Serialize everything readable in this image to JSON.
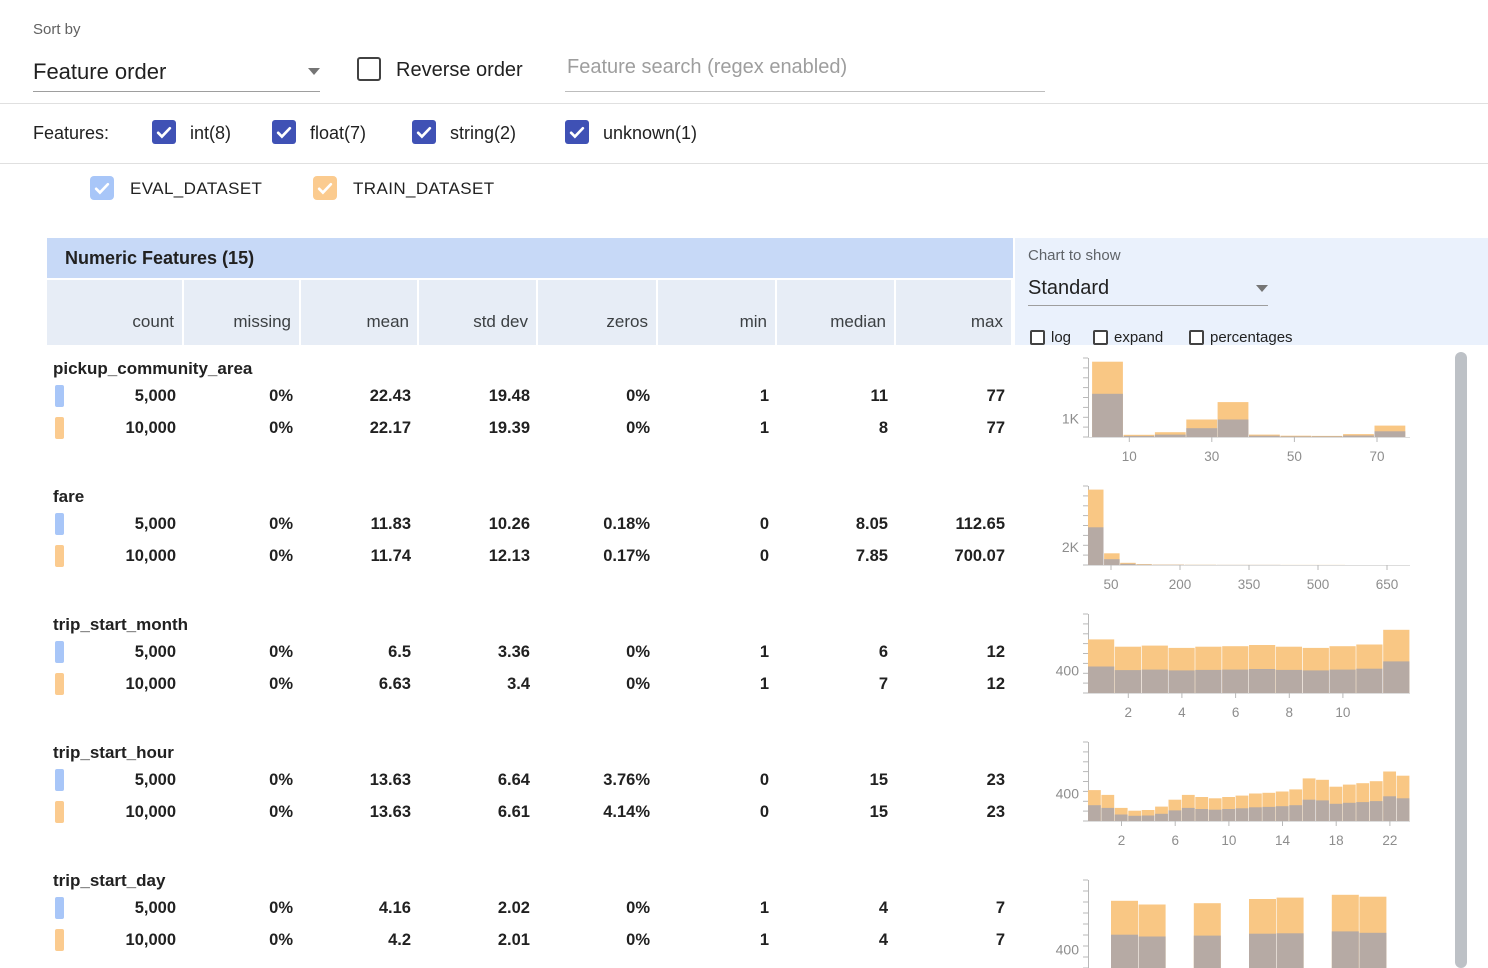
{
  "colors": {
    "checkbox_indigo": "#3f51b5",
    "eval_swatch": "#a8c6f8",
    "train_swatch": "#fbcb8f",
    "train_bar": "#f9c784",
    "overlap_bar": "#b2a9a5",
    "title_band": "#c7d9f7",
    "column_band": "#e7edf6",
    "chart_panel": "#eaf1fc"
  },
  "toolbar": {
    "sort_by_label": "Sort by",
    "sort_by_value": "Feature order",
    "reverse_order_label": "Reverse order",
    "search_placeholder": "Feature search (regex enabled)"
  },
  "filters": {
    "label": "Features:",
    "types": [
      {
        "label": "int(8)",
        "checked": true
      },
      {
        "label": "float(7)",
        "checked": true
      },
      {
        "label": "string(2)",
        "checked": true
      },
      {
        "label": "unknown(1)",
        "checked": true
      }
    ]
  },
  "datasets": [
    {
      "name": "EVAL_DATASET",
      "color": "#a8c6f8"
    },
    {
      "name": "TRAIN_DATASET",
      "color": "#fbcb8f"
    }
  ],
  "table": {
    "title": "Numeric Features (15)",
    "columns": [
      "count",
      "missing",
      "mean",
      "std dev",
      "zeros",
      "min",
      "median",
      "max"
    ],
    "chart_controls": {
      "label": "Chart to show",
      "selected": "Standard",
      "checkboxes": [
        {
          "label": "log",
          "checked": false
        },
        {
          "label": "expand",
          "checked": false
        },
        {
          "label": "percentages",
          "checked": false
        }
      ]
    },
    "features": [
      {
        "name": "pickup_community_area",
        "rows": [
          {
            "dataset": "eval",
            "values": [
              "5,000",
              "0%",
              "22.43",
              "19.48",
              "0%",
              "1",
              "11",
              "77"
            ]
          },
          {
            "dataset": "train",
            "values": [
              "10,000",
              "0%",
              "22.17",
              "19.39",
              "0%",
              "1",
              "8",
              "77"
            ]
          }
        ]
      },
      {
        "name": "fare",
        "rows": [
          {
            "dataset": "eval",
            "values": [
              "5,000",
              "0%",
              "11.83",
              "10.26",
              "0.18%",
              "0",
              "8.05",
              "112.65"
            ]
          },
          {
            "dataset": "train",
            "values": [
              "10,000",
              "0%",
              "11.74",
              "12.13",
              "0.17%",
              "0",
              "7.85",
              "700.07"
            ]
          }
        ]
      },
      {
        "name": "trip_start_month",
        "rows": [
          {
            "dataset": "eval",
            "values": [
              "5,000",
              "0%",
              "6.5",
              "3.36",
              "0%",
              "1",
              "6",
              "12"
            ]
          },
          {
            "dataset": "train",
            "values": [
              "10,000",
              "0%",
              "6.63",
              "3.4",
              "0%",
              "1",
              "7",
              "12"
            ]
          }
        ]
      },
      {
        "name": "trip_start_hour",
        "rows": [
          {
            "dataset": "eval",
            "values": [
              "5,000",
              "0%",
              "13.63",
              "6.64",
              "3.76%",
              "0",
              "15",
              "23"
            ]
          },
          {
            "dataset": "train",
            "values": [
              "10,000",
              "0%",
              "13.63",
              "6.61",
              "4.14%",
              "0",
              "15",
              "23"
            ]
          }
        ]
      },
      {
        "name": "trip_start_day",
        "rows": [
          {
            "dataset": "eval",
            "values": [
              "5,000",
              "0%",
              "4.16",
              "2.02",
              "0%",
              "1",
              "4",
              "7"
            ]
          },
          {
            "dataset": "train",
            "values": [
              "10,000",
              "0%",
              "4.2",
              "2.01",
              "0%",
              "1",
              "4",
              "7"
            ]
          }
        ]
      }
    ]
  },
  "chart_data": [
    {
      "type": "histogram",
      "feature": "pickup_community_area",
      "xrange": [
        0,
        78
      ],
      "xticks": [
        10,
        30,
        50,
        70
      ],
      "ymax": 4300,
      "ytick": {
        "value": 1000,
        "label": "1K"
      },
      "series": [
        {
          "name": "TRAIN_DATASET",
          "bins": [
            [
              1,
              8.6,
              4100
            ],
            [
              8.6,
              16.2,
              120
            ],
            [
              16.2,
              23.8,
              260
            ],
            [
              23.8,
              31.4,
              950
            ],
            [
              31.4,
              39,
              1900
            ],
            [
              39,
              46.6,
              130
            ],
            [
              46.6,
              54.2,
              70
            ],
            [
              54.2,
              61.8,
              60
            ],
            [
              61.8,
              69.4,
              160
            ],
            [
              69.4,
              77,
              620
            ]
          ]
        },
        {
          "name": "EVAL_DATASET",
          "bins": [
            [
              1,
              8.6,
              2350
            ],
            [
              8.6,
              16.2,
              60
            ],
            [
              16.2,
              23.8,
              130
            ],
            [
              23.8,
              31.4,
              480
            ],
            [
              31.4,
              39,
              950
            ],
            [
              39,
              46.6,
              70
            ],
            [
              46.6,
              54.2,
              35
            ],
            [
              54.2,
              61.8,
              30
            ],
            [
              61.8,
              69.4,
              80
            ],
            [
              69.4,
              77,
              310
            ]
          ]
        }
      ]
    },
    {
      "type": "histogram",
      "feature": "fare",
      "xrange": [
        0,
        700
      ],
      "xticks": [
        50,
        200,
        350,
        500,
        650
      ],
      "ymax": 8800,
      "ytick": {
        "value": 2000,
        "label": "2K"
      },
      "series": [
        {
          "name": "TRAIN_DATASET",
          "bins": [
            [
              0,
              35,
              8400
            ],
            [
              35,
              70,
              1300
            ],
            [
              70,
              105,
              250
            ],
            [
              105,
              140,
              100
            ],
            [
              140,
              210,
              45
            ],
            [
              210,
              280,
              20
            ],
            [
              280,
              420,
              12
            ],
            [
              420,
              560,
              6
            ],
            [
              560,
              700,
              5
            ]
          ]
        },
        {
          "name": "EVAL_DATASET",
          "bins": [
            [
              0,
              35,
              4200
            ],
            [
              35,
              70,
              650
            ],
            [
              70,
              105,
              130
            ],
            [
              105,
              140,
              50
            ],
            [
              140,
              210,
              22
            ],
            [
              210,
              280,
              10
            ],
            [
              280,
              420,
              6
            ],
            [
              420,
              560,
              3
            ],
            [
              560,
              700,
              0
            ]
          ]
        }
      ]
    },
    {
      "type": "histogram",
      "feature": "trip_start_month",
      "xrange": [
        0.5,
        12.5
      ],
      "xticks": [
        2,
        4,
        6,
        8,
        10
      ],
      "ymax": 1400,
      "ytick": {
        "value": 400,
        "label": "400"
      },
      "series": [
        {
          "name": "TRAIN_DATASET",
          "bins": [
            [
              0.5,
              1.5,
              950
            ],
            [
              1.5,
              2.5,
              820
            ],
            [
              2.5,
              3.5,
              840
            ],
            [
              3.5,
              4.5,
              800
            ],
            [
              4.5,
              5.5,
              820
            ],
            [
              5.5,
              6.5,
              830
            ],
            [
              6.5,
              7.5,
              850
            ],
            [
              7.5,
              8.5,
              820
            ],
            [
              8.5,
              9.5,
              800
            ],
            [
              9.5,
              10.5,
              830
            ],
            [
              10.5,
              11.5,
              860
            ],
            [
              11.5,
              12.5,
              1120
            ]
          ]
        },
        {
          "name": "EVAL_DATASET",
          "bins": [
            [
              0.5,
              1.5,
              470
            ],
            [
              1.5,
              2.5,
              405
            ],
            [
              2.5,
              3.5,
              415
            ],
            [
              3.5,
              4.5,
              400
            ],
            [
              4.5,
              5.5,
              410
            ],
            [
              5.5,
              6.5,
              415
            ],
            [
              6.5,
              7.5,
              425
            ],
            [
              7.5,
              8.5,
              410
            ],
            [
              8.5,
              9.5,
              400
            ],
            [
              9.5,
              10.5,
              415
            ],
            [
              10.5,
              11.5,
              430
            ],
            [
              11.5,
              12.5,
              560
            ]
          ]
        }
      ]
    },
    {
      "type": "histogram",
      "feature": "trip_start_hour",
      "xrange": [
        -0.5,
        23.5
      ],
      "xticks": [
        2,
        6,
        10,
        14,
        18,
        22
      ],
      "ymax": 1150,
      "ytick": {
        "value": 400,
        "label": "400"
      },
      "series": [
        {
          "name": "TRAIN_DATASET",
          "bins": [
            [
              -0.5,
              0.5,
              450
            ],
            [
              0.5,
              1.5,
              380
            ],
            [
              1.5,
              2.5,
              190
            ],
            [
              2.5,
              3.5,
              150
            ],
            [
              3.5,
              4.5,
              160
            ],
            [
              4.5,
              5.5,
              210
            ],
            [
              5.5,
              6.5,
              310
            ],
            [
              6.5,
              7.5,
              380
            ],
            [
              7.5,
              8.5,
              350
            ],
            [
              8.5,
              9.5,
              330
            ],
            [
              9.5,
              10.5,
              350
            ],
            [
              10.5,
              11.5,
              370
            ],
            [
              11.5,
              12.5,
              400
            ],
            [
              12.5,
              13.5,
              410
            ],
            [
              13.5,
              14.5,
              430
            ],
            [
              14.5,
              15.5,
              460
            ],
            [
              15.5,
              16.5,
              620
            ],
            [
              16.5,
              17.5,
              600
            ],
            [
              17.5,
              18.5,
              500
            ],
            [
              18.5,
              19.5,
              530
            ],
            [
              19.5,
              20.5,
              550
            ],
            [
              20.5,
              21.5,
              580
            ],
            [
              21.5,
              22.5,
              720
            ],
            [
              22.5,
              23.5,
              660
            ]
          ]
        },
        {
          "name": "EVAL_DATASET",
          "bins": [
            [
              -0.5,
              0.5,
              230
            ],
            [
              0.5,
              1.5,
              190
            ],
            [
              1.5,
              2.5,
              95
            ],
            [
              2.5,
              3.5,
              75
            ],
            [
              3.5,
              4.5,
              80
            ],
            [
              4.5,
              5.5,
              105
            ],
            [
              5.5,
              6.5,
              155
            ],
            [
              6.5,
              7.5,
              190
            ],
            [
              7.5,
              8.5,
              175
            ],
            [
              8.5,
              9.5,
              165
            ],
            [
              9.5,
              10.5,
              175
            ],
            [
              10.5,
              11.5,
              185
            ],
            [
              11.5,
              12.5,
              200
            ],
            [
              12.5,
              13.5,
              205
            ],
            [
              13.5,
              14.5,
              215
            ],
            [
              14.5,
              15.5,
              230
            ],
            [
              15.5,
              16.5,
              310
            ],
            [
              16.5,
              17.5,
              300
            ],
            [
              17.5,
              18.5,
              250
            ],
            [
              18.5,
              19.5,
              265
            ],
            [
              19.5,
              20.5,
              275
            ],
            [
              20.5,
              21.5,
              290
            ],
            [
              21.5,
              22.5,
              360
            ],
            [
              22.5,
              23.5,
              330
            ]
          ]
        }
      ]
    },
    {
      "type": "histogram",
      "feature": "trip_start_day",
      "xrange": [
        0.5,
        7.5
      ],
      "xticks": [],
      "ymax": 1900,
      "ytick": {
        "value": 400,
        "label": "400"
      },
      "series": [
        {
          "name": "TRAIN_DATASET",
          "bins": [
            [
              1,
              1.6,
              1450
            ],
            [
              1.6,
              2.2,
              1370
            ],
            [
              2.8,
              3.4,
              1400
            ],
            [
              4,
              4.6,
              1490
            ],
            [
              4.6,
              5.2,
              1520
            ],
            [
              5.8,
              6.4,
              1580
            ],
            [
              6.4,
              7,
              1540
            ]
          ]
        },
        {
          "name": "EVAL_DATASET",
          "bins": [
            [
              1,
              1.6,
              720
            ],
            [
              1.6,
              2.2,
              680
            ],
            [
              2.8,
              3.4,
              700
            ],
            [
              4,
              4.6,
              740
            ],
            [
              4.6,
              5.2,
              750
            ],
            [
              5.8,
              6.4,
              790
            ],
            [
              6.4,
              7,
              760
            ]
          ]
        }
      ]
    }
  ]
}
